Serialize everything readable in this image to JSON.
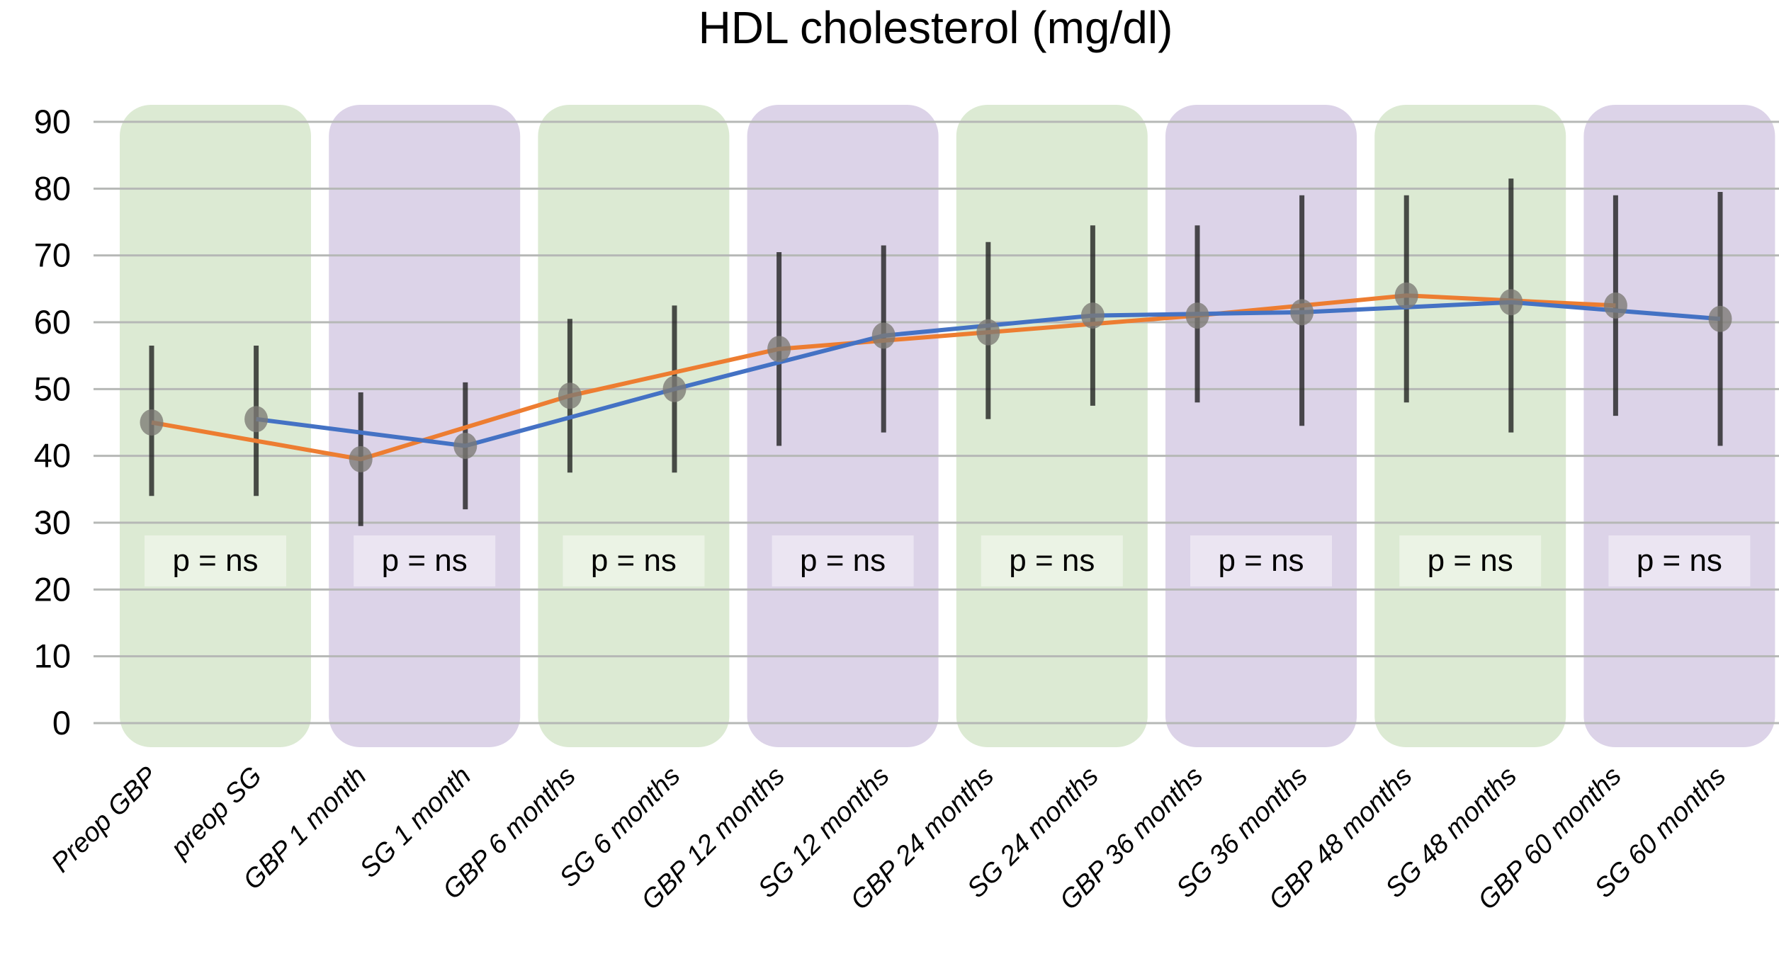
{
  "chart_data": {
    "type": "line",
    "title": "HDL cholesterol (mg/dl)",
    "xlabel": "",
    "ylabel": "",
    "ylim": [
      0,
      90
    ],
    "grid": true,
    "legend_position": "none",
    "yticks": [
      "0",
      "10",
      "20",
      "30",
      "40",
      "50",
      "60",
      "70",
      "80",
      "90"
    ],
    "categories": [
      "Preop GBP",
      "preop SG",
      "GBP 1 month",
      "SG 1 month",
      "GBP 6 months",
      "SG 6 months",
      "GBP 12 months",
      "SG 12 months",
      "GBP 24 months",
      "SG 24 months",
      "GBP 36 months",
      "SG 36 months",
      "GBP 48 months",
      "SG 48 months",
      "GBP 60 months",
      "SG 60 months"
    ],
    "series": [
      {
        "name": "GBP",
        "color": "#ed7d31",
        "category_indices": [
          0,
          2,
          4,
          6,
          8,
          10,
          12,
          14
        ],
        "values": [
          45,
          39.5,
          49,
          56,
          58.5,
          61,
          64,
          62.5
        ],
        "err_low": [
          34,
          29.5,
          37.5,
          41.5,
          45.5,
          48,
          48,
          46
        ],
        "err_high": [
          56.5,
          49.5,
          60.5,
          70.5,
          72,
          74.5,
          79,
          79
        ]
      },
      {
        "name": "SG",
        "color": "#4472c4",
        "category_indices": [
          1,
          3,
          5,
          7,
          9,
          11,
          13,
          15
        ],
        "values": [
          45.5,
          41.5,
          50,
          58,
          61,
          61.5,
          63,
          60.5
        ],
        "err_low": [
          34,
          32,
          37.5,
          43.5,
          47.5,
          44.5,
          43.5,
          41.5
        ],
        "err_high": [
          56.5,
          51,
          62.5,
          71.5,
          74.5,
          79,
          81.5,
          79.5
        ]
      }
    ],
    "annotations": {
      "p_labels": [
        "p = ns",
        "p = ns",
        "p = ns",
        "p = ns",
        "p = ns",
        "p = ns",
        "p = ns",
        "p = ns"
      ]
    },
    "styles": {
      "band_color_green": "#dcead3",
      "band_color_purple": "#dcd3e8",
      "band_label_bg": "rgba(255,255,255,0.42)",
      "gridline_color": "#b6b8b6",
      "error_bar_color": "rgba(30,30,30,0.78)",
      "marker_color": "rgba(124,122,116,0.78)"
    }
  }
}
